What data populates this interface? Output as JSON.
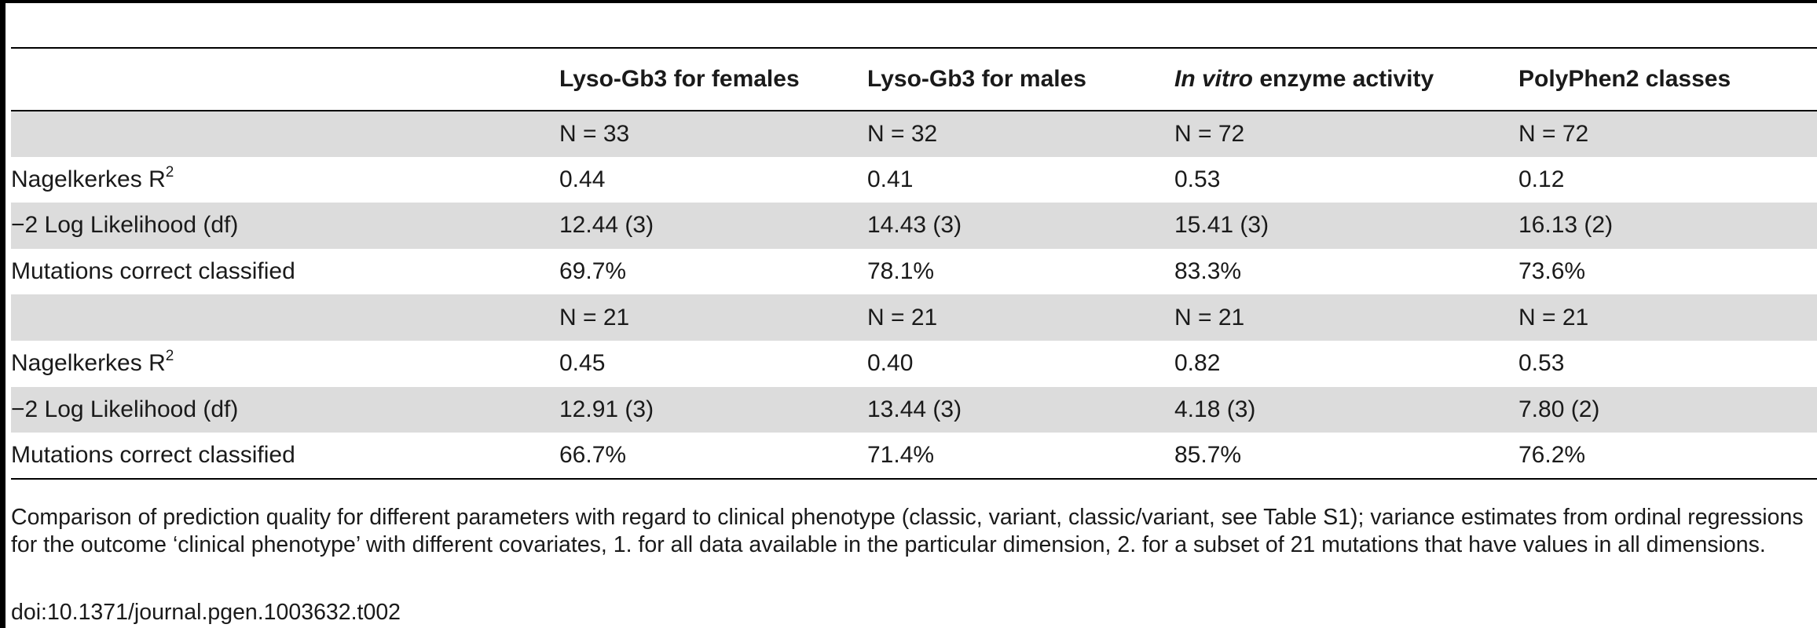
{
  "table": {
    "headers": {
      "col0": "",
      "col1": "Lyso-Gb3 for females",
      "col2": "Lyso-Gb3 for males",
      "col3_italic": "In vitro",
      "col3_rest": " enzyme activity",
      "col4": "PolyPhen2 classes"
    },
    "rows": [
      {
        "label": "",
        "label_sup": "",
        "values": [
          "N = 33",
          "N = 32",
          "N = 72",
          "N = 72"
        ]
      },
      {
        "label": "Nagelkerkes R",
        "label_sup": "2",
        "values": [
          "0.44",
          "0.41",
          "0.53",
          "0.12"
        ]
      },
      {
        "label": "−2 Log Likelihood (df)",
        "label_sup": "",
        "values": [
          "12.44 (3)",
          "14.43 (3)",
          "15.41 (3)",
          "16.13 (2)"
        ]
      },
      {
        "label": "Mutations correct classified",
        "label_sup": "",
        "values": [
          "69.7%",
          "78.1%",
          "83.3%",
          "73.6%"
        ]
      },
      {
        "label": "",
        "label_sup": "",
        "values": [
          "N = 21",
          "N = 21",
          "N = 21",
          "N = 21"
        ]
      },
      {
        "label": "Nagelkerkes R",
        "label_sup": "2",
        "values": [
          "0.45",
          "0.40",
          "0.82",
          "0.53"
        ]
      },
      {
        "label": "−2 Log Likelihood (df)",
        "label_sup": "",
        "values": [
          "12.91 (3)",
          "13.44 (3)",
          "4.18 (3)",
          "7.80 (2)"
        ]
      },
      {
        "label": "Mutations correct classified",
        "label_sup": "",
        "values": [
          "66.7%",
          "71.4%",
          "85.7%",
          "76.2%"
        ]
      }
    ]
  },
  "footnote": "Comparison of prediction quality for different parameters with regard to clinical phenotype (classic, variant, classic/variant, see Table S1); variance estimates from ordinal regressions for the outcome ‘clinical phenotype’ with different covariates, 1. for all data available in the particular dimension, 2. for a subset of 21 mutations that have values in all dimensions.",
  "doi": "doi:10.1371/journal.pgen.1003632.t002"
}
